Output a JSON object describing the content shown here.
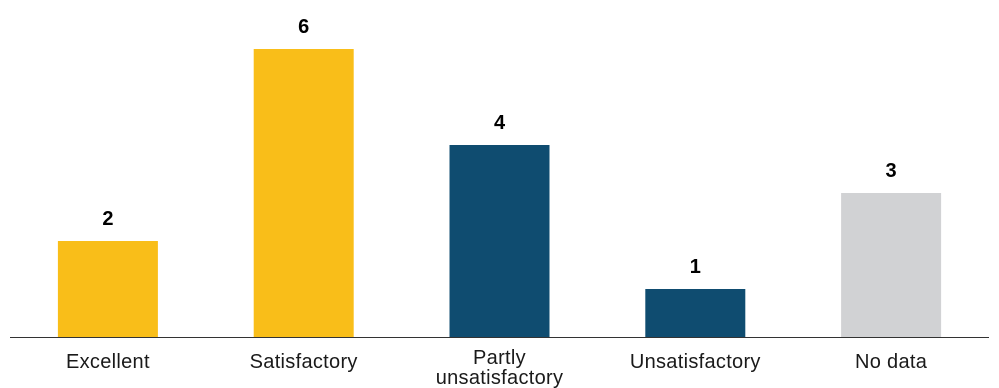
{
  "chart_data": {
    "type": "bar",
    "categories": [
      "Excellent",
      "Satisfactory",
      "Partly unsatisfactory",
      "Unsatisfactory",
      "No data"
    ],
    "category_lines": [
      [
        "Excellent"
      ],
      [
        "Satisfactory"
      ],
      [
        "Partly",
        "unsatisfactory"
      ],
      [
        "Unsatisfactory"
      ],
      [
        "No data"
      ]
    ],
    "values": [
      2,
      6,
      4,
      1,
      3
    ],
    "value_labels": [
      "2",
      "6",
      "4",
      "1",
      "3"
    ],
    "colors": [
      "#F9BE19",
      "#F9BE19",
      "#0F4C70",
      "#0F4C70",
      "#D1D2D4"
    ],
    "axis_color": "#333333",
    "title": "",
    "xlabel": "",
    "ylabel": "",
    "ylim": [
      0,
      6
    ],
    "grid": false,
    "legend": "none"
  }
}
